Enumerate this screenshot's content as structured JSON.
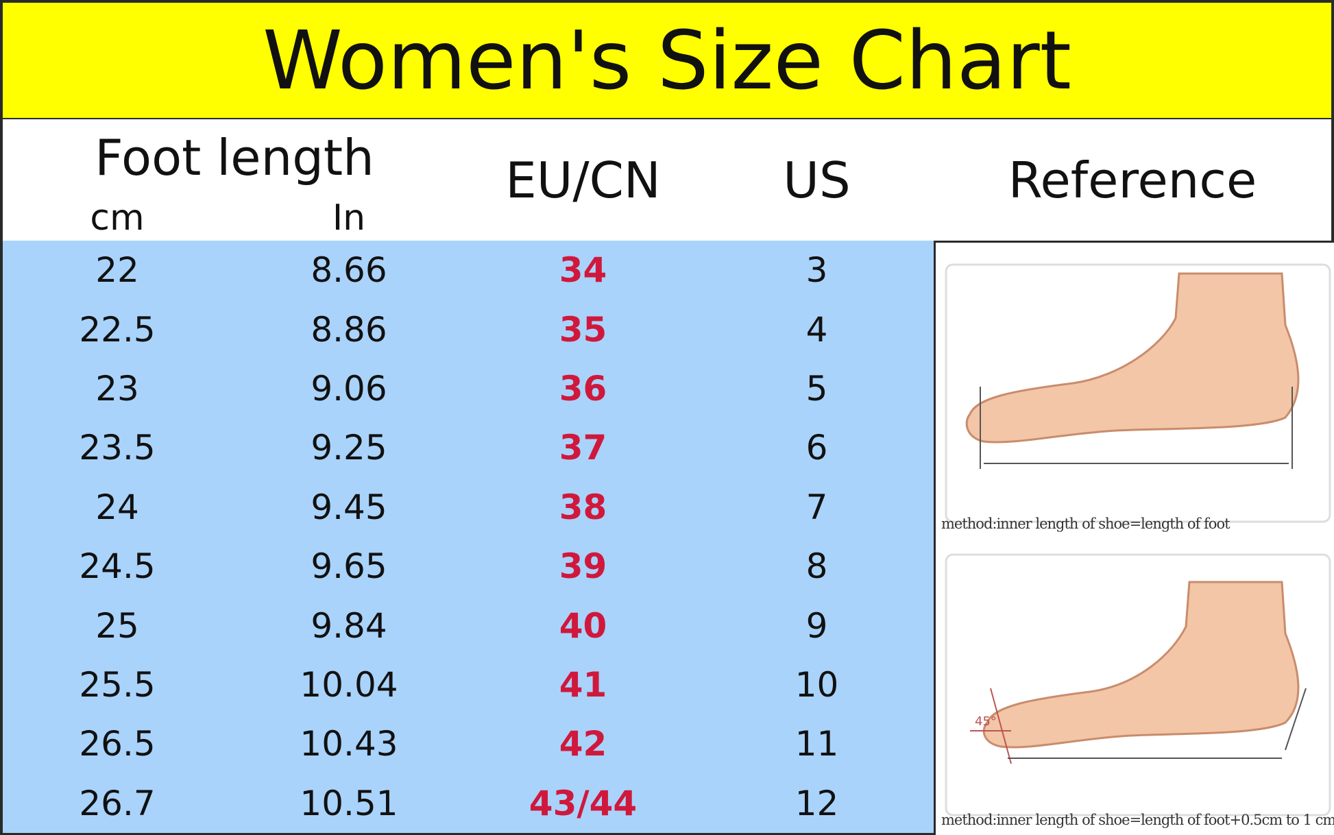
{
  "title": "Women's Size Chart",
  "table": {
    "header": {
      "foot_length": "Foot length",
      "cm": "cm",
      "in": "In",
      "eu_cn": "EU/CN",
      "us": "US",
      "reference": "Reference"
    },
    "rows": [
      [
        "22",
        "8.66",
        "34",
        "3"
      ],
      [
        "22.5",
        "8.86",
        "35",
        "4"
      ],
      [
        "23",
        "9.06",
        "36",
        "5"
      ],
      [
        "23.5",
        "9.25",
        "37",
        "6"
      ],
      [
        "24",
        "9.45",
        "38",
        "7"
      ],
      [
        "24.5",
        "9.65",
        "39",
        "8"
      ],
      [
        "25",
        "9.84",
        "40",
        "9"
      ],
      [
        "25.5",
        "10.04",
        "41",
        "10"
      ],
      [
        "26.5",
        "10.43",
        "42",
        "11"
      ],
      [
        "26.7",
        "10.51",
        "43/44",
        "12"
      ]
    ]
  },
  "reference": {
    "captions": [
      "method:inner length of shoe=length of foot",
      "method:inner length of shoe=length of foot+0.5cm to 1 cm"
    ],
    "angle_label": "45°"
  }
}
